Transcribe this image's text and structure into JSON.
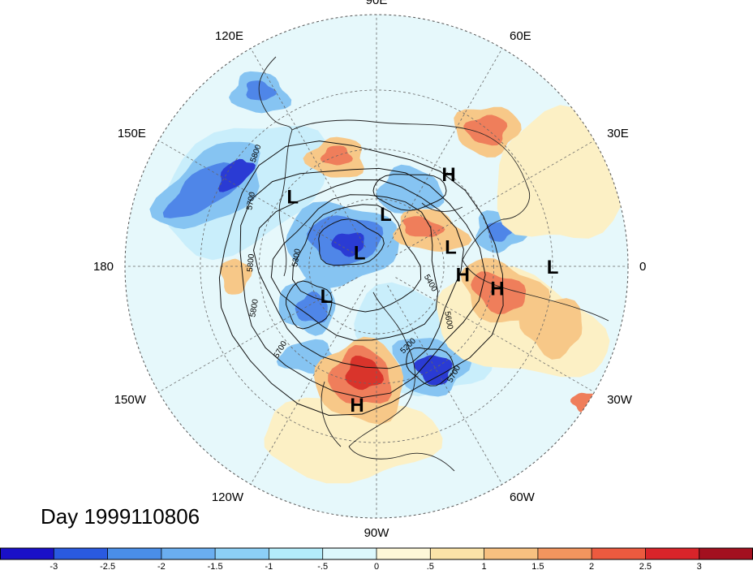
{
  "title": "Day 1999110806",
  "longitude_labels": [
    "90E",
    "60E",
    "30E",
    "0",
    "30W",
    "60W",
    "90W",
    "120W",
    "150W",
    "180",
    "150E",
    "120E"
  ],
  "pressure_centers": [
    {
      "letter": "L",
      "lat": 43,
      "lon": 140
    },
    {
      "letter": "L",
      "lat": 66,
      "lon": 80
    },
    {
      "letter": "L",
      "lat": 56,
      "lon": 15
    },
    {
      "letter": "L",
      "lat": 20,
      "lon": 0
    },
    {
      "letter": "L",
      "lat": 80,
      "lon": 140
    },
    {
      "letter": "L",
      "lat": 64,
      "lon": -150
    },
    {
      "letter": "H",
      "lat": 40,
      "lon": 52
    },
    {
      "letter": "H",
      "lat": 52,
      "lon": -5
    },
    {
      "letter": "H",
      "lat": 38,
      "lon": -10
    },
    {
      "letter": "H",
      "lat": 32,
      "lon": -98
    }
  ],
  "contour_labels": [
    "5800",
    "5700",
    "5300",
    "5800",
    "5800",
    "5700",
    "5400",
    "5600",
    "5700",
    "5200"
  ],
  "anomaly_colors": {
    "neg_strong": "#2a3bd4",
    "neg_mid": "#4f86e8",
    "neg_weak": "#86c4f2",
    "neg_faint": "#c9eefb",
    "pos_faint": "#fcf0c5",
    "pos_weak": "#f7c888",
    "pos_mid": "#ef7e5b",
    "pos_strong": "#d9342b"
  },
  "colorbar": {
    "ticks": [
      "-3",
      "-2.5",
      "-2",
      "-1.5",
      "-1",
      "-.5",
      "0",
      ".5",
      "1",
      "1.5",
      "2",
      "2.5",
      "3"
    ],
    "colors": [
      "#1a10c8",
      "#2a5ae0",
      "#4a8ee8",
      "#6aaef0",
      "#8ccff6",
      "#b3ecfa",
      "#dcf8fc",
      "#fdf7d8",
      "#fbe3a8",
      "#f7c080",
      "#f3955e",
      "#ec5a3f",
      "#d9242a",
      "#a3101f"
    ]
  }
}
